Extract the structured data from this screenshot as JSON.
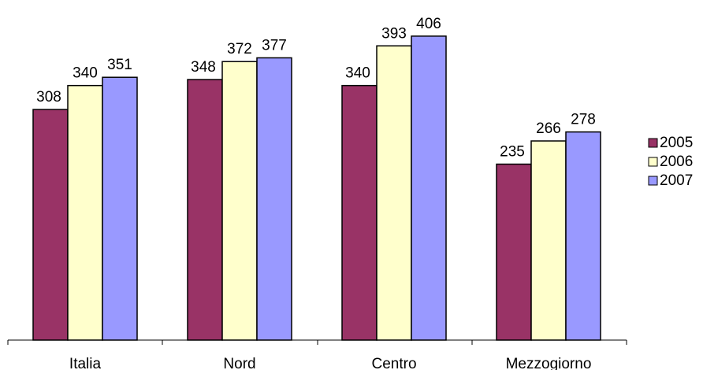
{
  "chart_data": {
    "type": "bar",
    "categories": [
      "Italia",
      "Nord",
      "Centro",
      "Mezzogiorno"
    ],
    "series": [
      {
        "name": "2005",
        "values": [
          308,
          348,
          340,
          235
        ],
        "color": "#993366"
      },
      {
        "name": "2006",
        "values": [
          340,
          372,
          393,
          266
        ],
        "color": "#FFFFCC"
      },
      {
        "name": "2007",
        "values": [
          351,
          377,
          406,
          278
        ],
        "color": "#9999FF"
      }
    ],
    "title": "",
    "xlabel": "",
    "ylabel": "",
    "ylim": [
      0,
      450
    ],
    "grid": false,
    "legend": "right"
  }
}
